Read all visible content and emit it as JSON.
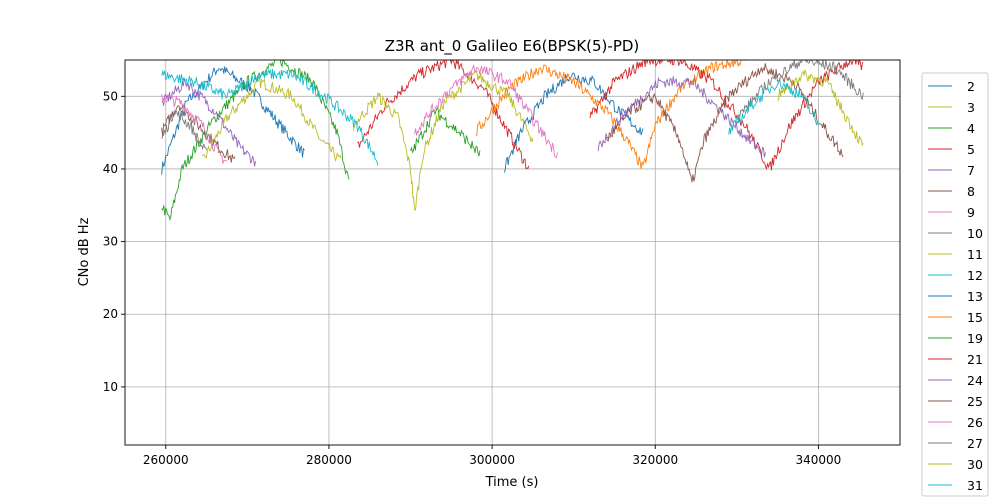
{
  "chart_data": {
    "type": "line",
    "title": "Z3R ant_0 Galileo E6(BPSK(5)-PD)",
    "xlabel": "Time (s)",
    "ylabel": "CNo dB Hz",
    "xlim": [
      255000,
      350000
    ],
    "ylim": [
      2,
      55
    ],
    "xticks": [
      260000,
      280000,
      300000,
      320000,
      340000
    ],
    "yticks": [
      10,
      20,
      30,
      40,
      50
    ],
    "grid": true,
    "legend_position": "right-outside",
    "series": [
      {
        "name": "2",
        "color": "#1f77b4",
        "points": [
          [
            259500,
            40
          ],
          [
            262500,
            49
          ],
          [
            266500,
            54
          ],
          [
            270500,
            51
          ],
          [
            274000,
            46
          ],
          [
            277000,
            42
          ]
        ]
      },
      {
        "name": "3",
        "color": "#bcbd22",
        "points": [
          [
            264500,
            41
          ],
          [
            267500,
            47
          ],
          [
            271500,
            52
          ],
          [
            275500,
            50
          ],
          [
            279000,
            44
          ],
          [
            281500,
            41
          ]
        ]
      },
      {
        "name": "4",
        "color": "#2ca02c",
        "points": [
          [
            259500,
            35
          ],
          [
            260500,
            33
          ],
          [
            262000,
            40
          ],
          [
            266000,
            47
          ],
          [
            270000,
            52
          ],
          [
            274000,
            55
          ],
          [
            278000,
            52
          ],
          [
            281000,
            45
          ],
          [
            282500,
            38
          ]
        ]
      },
      {
        "name": "5",
        "color": "#d62728",
        "points": [
          [
            283500,
            43
          ],
          [
            287000,
            49
          ],
          [
            291000,
            53
          ],
          [
            295000,
            55
          ],
          [
            299000,
            51
          ],
          [
            302500,
            44
          ],
          [
            304500,
            40
          ]
        ]
      },
      {
        "name": "7",
        "color": "#9467bd",
        "points": [
          [
            259500,
            49
          ],
          [
            262500,
            52
          ],
          [
            266000,
            48
          ],
          [
            269000,
            43
          ],
          [
            271000,
            41
          ]
        ]
      },
      {
        "name": "8",
        "color": "#8c564b",
        "points": [
          [
            259500,
            45
          ],
          [
            261500,
            49
          ],
          [
            264000,
            46
          ],
          [
            266500,
            43
          ],
          [
            268500,
            41
          ]
        ]
      },
      {
        "name": "9",
        "color": "#e377c2",
        "points": [
          [
            259500,
            50
          ],
          [
            262000,
            49
          ],
          [
            264500,
            46
          ],
          [
            266500,
            42
          ],
          [
            267500,
            41
          ]
        ]
      },
      {
        "name": "10",
        "color": "#7f7f7f",
        "points": [
          [
            259500,
            44
          ],
          [
            261000,
            48
          ],
          [
            263000,
            46
          ],
          [
            265000,
            42
          ]
        ]
      },
      {
        "name": "11",
        "color": "#bcbd22",
        "points": [
          [
            283000,
            46
          ],
          [
            286000,
            50
          ],
          [
            288500,
            47
          ],
          [
            290000,
            40
          ],
          [
            290500,
            34
          ],
          [
            291500,
            42
          ],
          [
            294000,
            49
          ],
          [
            298000,
            53
          ],
          [
            302000,
            50
          ],
          [
            305000,
            44
          ]
        ]
      },
      {
        "name": "12",
        "color": "#17becf",
        "points": [
          [
            259500,
            53
          ],
          [
            263500,
            52
          ],
          [
            267500,
            50
          ],
          [
            271500,
            53
          ],
          [
            275500,
            53
          ],
          [
            279500,
            50
          ],
          [
            283500,
            46
          ],
          [
            286000,
            41
          ]
        ]
      },
      {
        "name": "13",
        "color": "#1f77b4",
        "points": [
          [
            301500,
            40
          ],
          [
            303500,
            45
          ],
          [
            306500,
            50
          ],
          [
            309500,
            53
          ],
          [
            312500,
            52
          ],
          [
            315500,
            48
          ],
          [
            318500,
            45
          ]
        ]
      },
      {
        "name": "15",
        "color": "#ff7f0e",
        "points": [
          [
            298000,
            45
          ],
          [
            302000,
            51
          ],
          [
            306000,
            54
          ],
          [
            310000,
            52
          ],
          [
            314000,
            48
          ],
          [
            316500,
            44
          ],
          [
            318500,
            40
          ],
          [
            320000,
            46
          ],
          [
            323000,
            51
          ],
          [
            327000,
            54
          ],
          [
            331000,
            55
          ]
        ]
      },
      {
        "name": "19",
        "color": "#2ca02c",
        "points": [
          [
            290000,
            42
          ],
          [
            293000,
            48
          ],
          [
            296000,
            45
          ],
          [
            298500,
            42
          ]
        ]
      },
      {
        "name": "21",
        "color": "#d62728",
        "points": [
          [
            312000,
            47
          ],
          [
            315000,
            52
          ],
          [
            319000,
            55
          ],
          [
            323000,
            55
          ],
          [
            327000,
            52
          ],
          [
            331000,
            46
          ],
          [
            334000,
            40
          ],
          [
            336500,
            46
          ],
          [
            340000,
            52
          ],
          [
            344000,
            55
          ],
          [
            345500,
            54
          ]
        ]
      },
      {
        "name": "24",
        "color": "#9467bd",
        "points": [
          [
            313000,
            43
          ],
          [
            316500,
            48
          ],
          [
            320500,
            52
          ],
          [
            324500,
            52
          ],
          [
            328000,
            48
          ],
          [
            331500,
            44
          ],
          [
            333500,
            42
          ]
        ]
      },
      {
        "name": "25",
        "color": "#8c564b",
        "points": [
          [
            314000,
            44
          ],
          [
            317000,
            48
          ],
          [
            320000,
            50
          ],
          [
            323000,
            44
          ],
          [
            324500,
            38
          ],
          [
            326000,
            44
          ],
          [
            329000,
            50
          ],
          [
            333000,
            54
          ],
          [
            337000,
            52
          ],
          [
            340500,
            46
          ],
          [
            343000,
            42
          ]
        ]
      },
      {
        "name": "26",
        "color": "#e377c2",
        "points": [
          [
            290500,
            45
          ],
          [
            294000,
            50
          ],
          [
            298000,
            54
          ],
          [
            302000,
            52
          ],
          [
            305500,
            46
          ],
          [
            308000,
            42
          ]
        ]
      },
      {
        "name": "27",
        "color": "#7f7f7f",
        "points": [
          [
            330000,
            47
          ],
          [
            334000,
            52
          ],
          [
            338000,
            55
          ],
          [
            342000,
            54
          ],
          [
            345500,
            50
          ]
        ]
      },
      {
        "name": "30",
        "color": "#bcbd22",
        "points": [
          [
            335000,
            50
          ],
          [
            338000,
            53
          ],
          [
            341000,
            52
          ],
          [
            343500,
            47
          ],
          [
            345500,
            43
          ]
        ]
      },
      {
        "name": "31",
        "color": "#17becf",
        "points": [
          [
            329000,
            45
          ],
          [
            332000,
            49
          ],
          [
            335000,
            52
          ],
          [
            338000,
            50
          ],
          [
            340000,
            46
          ]
        ]
      }
    ]
  }
}
